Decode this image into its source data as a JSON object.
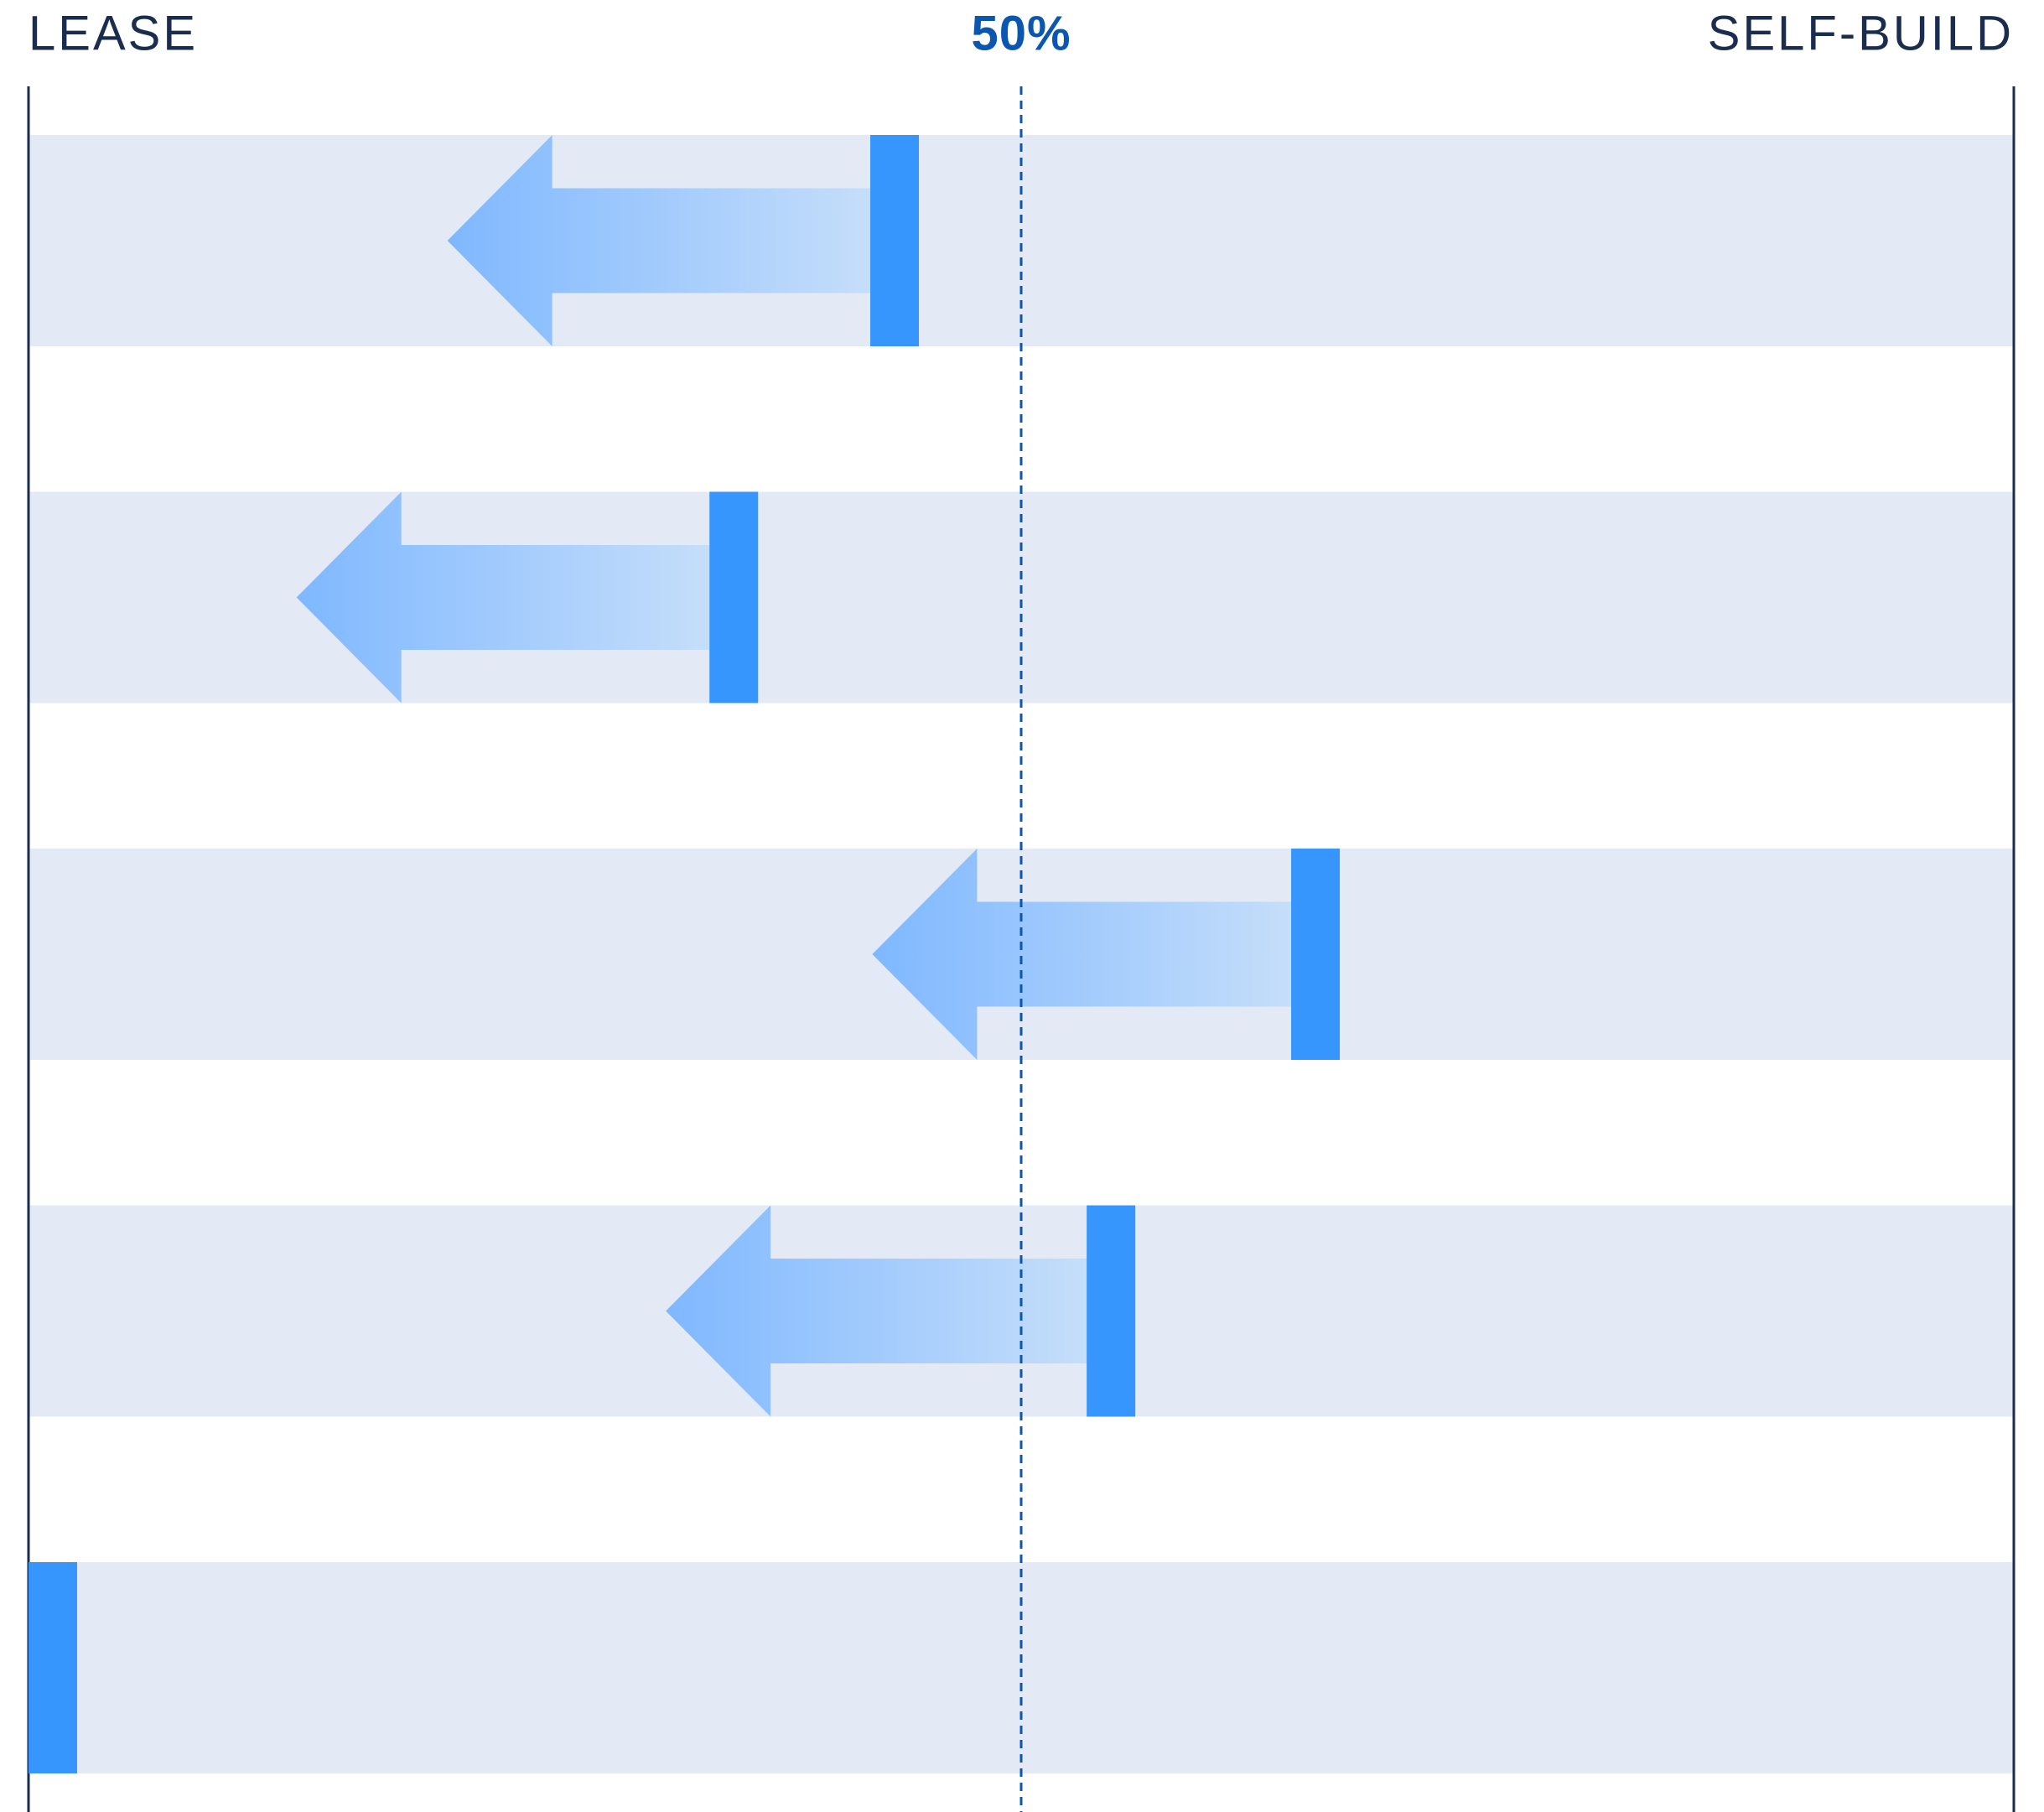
{
  "chart_data": {
    "type": "arrow",
    "left_label": "LEASE",
    "right_label": "SELF-BUILD",
    "reference": {
      "value": 50,
      "label": "50%"
    },
    "xlim": [
      0,
      100
    ],
    "values": [
      42.4,
      34.3,
      63.6,
      53.3,
      0
    ],
    "targets": [
      21.1,
      13.5,
      42.5,
      32.1,
      null
    ],
    "color": "#3796fd",
    "arrow_colors": [
      "#7fb8ff",
      "#c5defa"
    ],
    "band_color": "#e3eaf5"
  }
}
